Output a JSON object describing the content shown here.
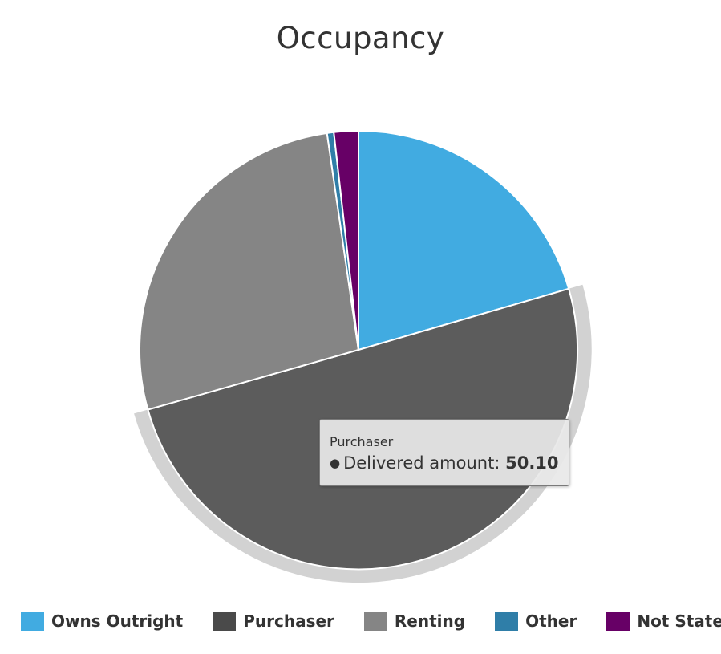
{
  "chart_data": {
    "type": "pie",
    "title": "Occupancy",
    "categories": [
      "Owns Outright",
      "Purchaser",
      "Renting",
      "Other",
      "Not Stated"
    ],
    "series": [
      {
        "name": "Delivered amount",
        "values": [
          20.5,
          50.1,
          27.1,
          0.5,
          1.8
        ]
      }
    ],
    "colors": [
      "#41abe1",
      "#5c5c5c",
      "#858585",
      "#2f7ea8",
      "#670066"
    ],
    "legend_colors": [
      "#41abe1",
      "#4a4a4a",
      "#858585",
      "#2f7ea8",
      "#670066"
    ],
    "hover_slice": "Purchaser",
    "legend_position": "bottom"
  },
  "tooltip": {
    "title": "Purchaser",
    "series_label": "Delivered amount:",
    "value": "50.10",
    "bullet": "●"
  }
}
